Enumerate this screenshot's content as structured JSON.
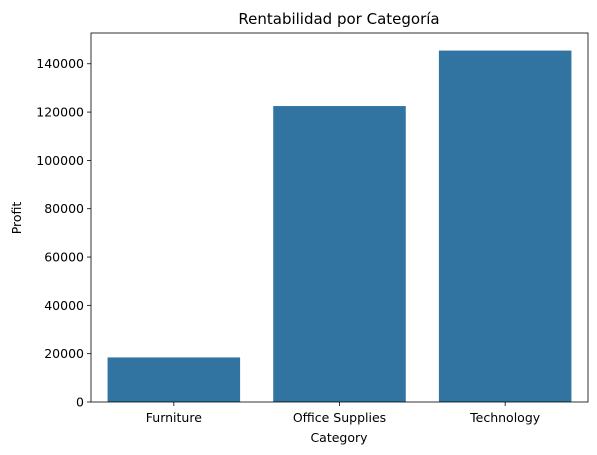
{
  "chart_data": {
    "type": "bar",
    "title": "Rentabilidad por Categoría",
    "xlabel": "Category",
    "ylabel": "Profit",
    "categories": [
      "Furniture",
      "Office Supplies",
      "Technology"
    ],
    "values": [
      18451,
      122491,
      145455
    ],
    "ylim": [
      0,
      152727
    ],
    "yticks": [
      0,
      20000,
      40000,
      60000,
      80000,
      100000,
      120000,
      140000
    ],
    "grid": false,
    "bar_color": "#3274a1"
  }
}
